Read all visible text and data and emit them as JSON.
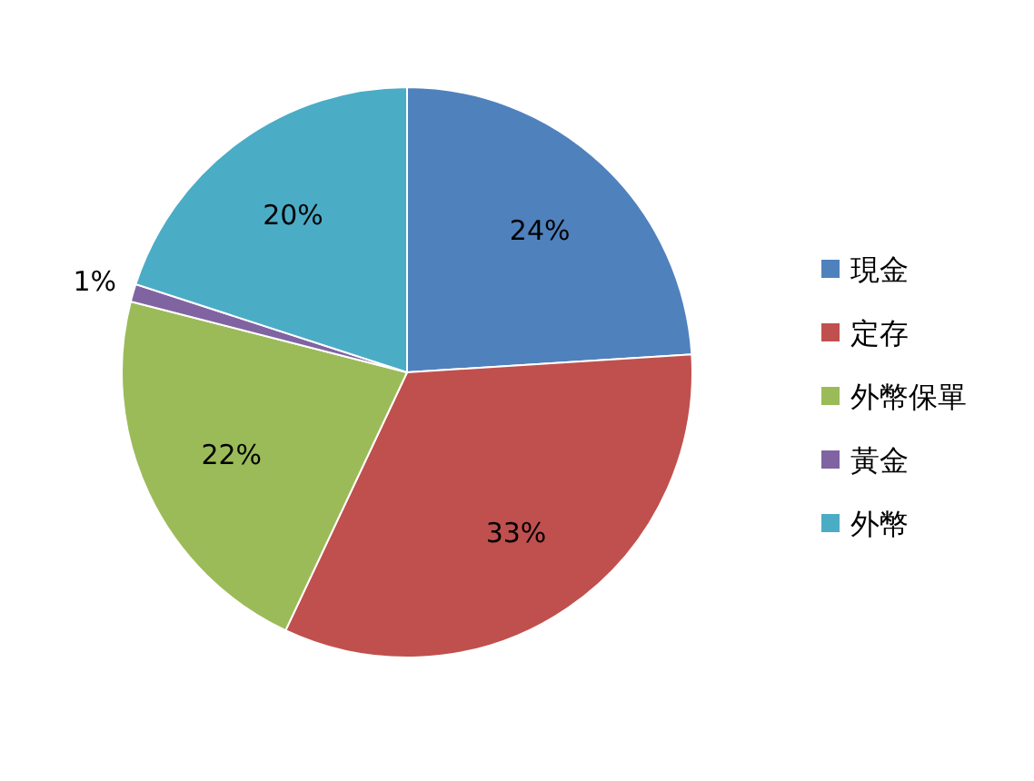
{
  "chart_data": {
    "type": "pie",
    "categories": [
      "現金",
      "定存",
      "外幣保單",
      "黃金",
      "外幣"
    ],
    "values": [
      24,
      33,
      22,
      1,
      20
    ],
    "value_labels": [
      "24%",
      "33%",
      "22%",
      "1%",
      "20%"
    ],
    "colors": [
      "#4f81bd",
      "#c0504d",
      "#9bbb59",
      "#8064a2",
      "#4bacc6"
    ],
    "legend": "right"
  }
}
